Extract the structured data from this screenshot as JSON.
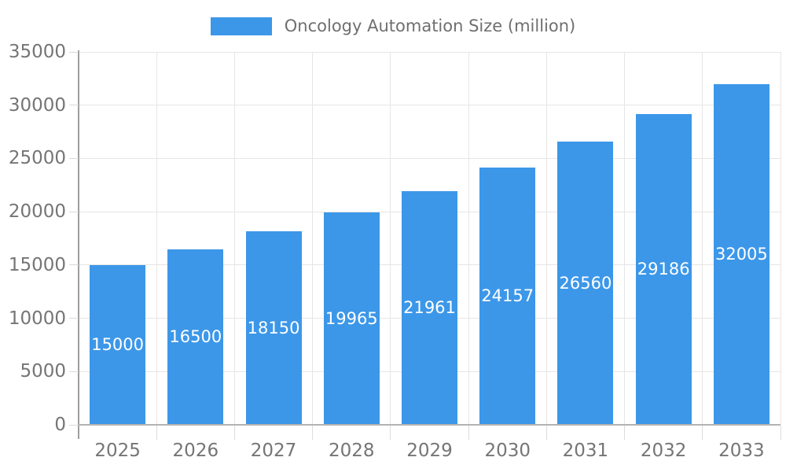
{
  "legend": {
    "label": "Oncology Automation Size (million)"
  },
  "chart_data": {
    "type": "bar",
    "title": "Oncology Automation Size (million)",
    "categories": [
      "2025",
      "2026",
      "2027",
      "2028",
      "2029",
      "2030",
      "2031",
      "2032",
      "2033"
    ],
    "values": [
      15000,
      16500,
      18150,
      19965,
      21961,
      24157,
      26560,
      29186,
      32005
    ],
    "xlabel": "",
    "ylabel": "",
    "ylim": [
      0,
      35000
    ],
    "y_ticks": [
      0,
      5000,
      10000,
      15000,
      20000,
      25000,
      30000,
      35000
    ],
    "grid": true,
    "legend_position": "top",
    "bar_color": "#3c97e8",
    "bar_label_color": "#ffffff",
    "axis_text_color": "#757575"
  }
}
